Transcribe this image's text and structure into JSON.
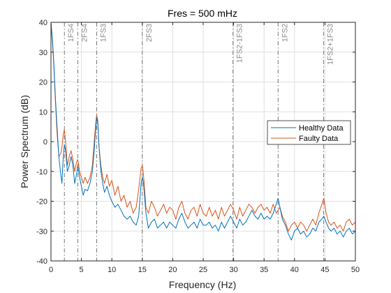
{
  "chart_data": {
    "type": "line",
    "title": "Fres = 500 mHz",
    "xlabel": "Frequency (Hz)",
    "ylabel": "Power Spectrum (dB)",
    "xlim": [
      0,
      50
    ],
    "ylim": [
      -40,
      40
    ],
    "x_ticks": [
      0,
      5,
      10,
      15,
      20,
      25,
      30,
      35,
      40,
      45,
      50
    ],
    "y_ticks": [
      -40,
      -30,
      -20,
      -10,
      0,
      10,
      20,
      30,
      40
    ],
    "grid": true,
    "legend_position": "right",
    "markers": [
      {
        "label": "1FS4",
        "x": 2.2
      },
      {
        "label": "2FS4",
        "x": 4.4
      },
      {
        "label": "1FS3",
        "x": 7.5
      },
      {
        "label": "2FS3",
        "x": 15.0
      },
      {
        "label": "1FS2-1FS3",
        "x": 29.9
      },
      {
        "label": "1FS2",
        "x": 37.3
      },
      {
        "label": "1FS2+1FS3",
        "x": 44.8
      }
    ],
    "series": [
      {
        "name": "Healthy Data",
        "color": "#0072BD",
        "points": [
          [
            0,
            40
          ],
          [
            0.25,
            34
          ],
          [
            0.5,
            25
          ],
          [
            0.75,
            14
          ],
          [
            1,
            5
          ],
          [
            1.3,
            -5
          ],
          [
            1.6,
            -11
          ],
          [
            1.8,
            -14
          ],
          [
            2.0,
            -6
          ],
          [
            2.2,
            -1
          ],
          [
            2.4,
            -3
          ],
          [
            2.7,
            -10
          ],
          [
            3.0,
            -8
          ],
          [
            3.3,
            -5
          ],
          [
            3.6,
            -8
          ],
          [
            3.9,
            -14
          ],
          [
            4.2,
            -11
          ],
          [
            4.4,
            -8
          ],
          [
            4.7,
            -12
          ],
          [
            5.0,
            -15
          ],
          [
            5.3,
            -18
          ],
          [
            5.6,
            -16
          ],
          [
            6.0,
            -16.5
          ],
          [
            6.4,
            -14
          ],
          [
            6.8,
            -10
          ],
          [
            7.1,
            -3
          ],
          [
            7.3,
            3
          ],
          [
            7.5,
            8
          ],
          [
            7.7,
            6
          ],
          [
            7.9,
            -2
          ],
          [
            8.2,
            -10
          ],
          [
            8.5,
            -14
          ],
          [
            8.8,
            -17
          ],
          [
            9.2,
            -15
          ],
          [
            9.6,
            -18
          ],
          [
            10.0,
            -20
          ],
          [
            10.5,
            -22
          ],
          [
            11.0,
            -21
          ],
          [
            11.5,
            -23
          ],
          [
            12.0,
            -25
          ],
          [
            12.5,
            -26
          ],
          [
            13.0,
            -25
          ],
          [
            13.5,
            -27
          ],
          [
            14.0,
            -28
          ],
          [
            14.4,
            -25
          ],
          [
            14.8,
            -14
          ],
          [
            15.0,
            -12
          ],
          [
            15.2,
            -14
          ],
          [
            15.6,
            -24
          ],
          [
            16.0,
            -29
          ],
          [
            16.5,
            -27
          ],
          [
            17.0,
            -26
          ],
          [
            17.5,
            -29
          ],
          [
            18.0,
            -28
          ],
          [
            18.5,
            -27
          ],
          [
            19.0,
            -29
          ],
          [
            19.5,
            -27
          ],
          [
            20.0,
            -28
          ],
          [
            20.5,
            -29
          ],
          [
            21.0,
            -26
          ],
          [
            21.5,
            -24
          ],
          [
            22.0,
            -27
          ],
          [
            22.5,
            -29
          ],
          [
            23.0,
            -28
          ],
          [
            23.5,
            -27
          ],
          [
            24.0,
            -29
          ],
          [
            24.5,
            -26
          ],
          [
            25.0,
            -28
          ],
          [
            25.5,
            -28
          ],
          [
            26.0,
            -27
          ],
          [
            26.5,
            -29
          ],
          [
            27.0,
            -28
          ],
          [
            27.5,
            -30
          ],
          [
            28.0,
            -27
          ],
          [
            28.5,
            -29
          ],
          [
            29.0,
            -27
          ],
          [
            29.5,
            -25
          ],
          [
            30.0,
            -27
          ],
          [
            30.5,
            -29
          ],
          [
            31.0,
            -26
          ],
          [
            31.5,
            -28
          ],
          [
            32.0,
            -27
          ],
          [
            32.5,
            -25
          ],
          [
            33.0,
            -23
          ],
          [
            33.5,
            -25
          ],
          [
            34.0,
            -26
          ],
          [
            34.5,
            -24
          ],
          [
            35.0,
            -26
          ],
          [
            35.5,
            -25
          ],
          [
            36.0,
            -26
          ],
          [
            36.5,
            -24
          ],
          [
            37.0,
            -21
          ],
          [
            37.3,
            -19
          ],
          [
            37.6,
            -22
          ],
          [
            38.0,
            -26
          ],
          [
            38.5,
            -28
          ],
          [
            39.0,
            -31
          ],
          [
            39.5,
            -33
          ],
          [
            40.0,
            -30
          ],
          [
            40.5,
            -29
          ],
          [
            41.0,
            -31
          ],
          [
            41.5,
            -30
          ],
          [
            42.0,
            -32
          ],
          [
            42.5,
            -31
          ],
          [
            43.0,
            -29
          ],
          [
            43.5,
            -30
          ],
          [
            44.0,
            -27
          ],
          [
            44.5,
            -26
          ],
          [
            44.8,
            -25
          ],
          [
            45.2,
            -27
          ],
          [
            45.6,
            -29
          ],
          [
            46.0,
            -30
          ],
          [
            46.5,
            -29
          ],
          [
            47.0,
            -31
          ],
          [
            47.5,
            -30
          ],
          [
            48.0,
            -32
          ],
          [
            48.5,
            -30
          ],
          [
            49.0,
            -29
          ],
          [
            49.5,
            -31
          ],
          [
            50.0,
            -30
          ]
        ]
      },
      {
        "name": "Faulty Data",
        "color": "#D95319",
        "points": [
          [
            0,
            40
          ],
          [
            0.25,
            33
          ],
          [
            0.5,
            24
          ],
          [
            0.75,
            13
          ],
          [
            1,
            3
          ],
          [
            1.3,
            -5
          ],
          [
            1.6,
            -4
          ],
          [
            1.8,
            -2
          ],
          [
            2.0,
            2
          ],
          [
            2.2,
            4
          ],
          [
            2.4,
            0
          ],
          [
            2.7,
            -8
          ],
          [
            3.0,
            -5
          ],
          [
            3.3,
            -3
          ],
          [
            3.6,
            -6
          ],
          [
            3.9,
            -10
          ],
          [
            4.2,
            -7
          ],
          [
            4.4,
            -6
          ],
          [
            4.7,
            -10
          ],
          [
            5.0,
            -12
          ],
          [
            5.3,
            -14
          ],
          [
            5.6,
            -12
          ],
          [
            6.0,
            -14
          ],
          [
            6.4,
            -12
          ],
          [
            6.8,
            -8
          ],
          [
            7.1,
            0
          ],
          [
            7.3,
            5
          ],
          [
            7.5,
            9
          ],
          [
            7.7,
            7
          ],
          [
            7.9,
            -2
          ],
          [
            8.2,
            -8
          ],
          [
            8.5,
            -12
          ],
          [
            8.8,
            -14
          ],
          [
            9.2,
            -11
          ],
          [
            9.6,
            -15
          ],
          [
            10.0,
            -13
          ],
          [
            10.5,
            -18
          ],
          [
            11.0,
            -15
          ],
          [
            11.5,
            -20
          ],
          [
            12.0,
            -18
          ],
          [
            12.5,
            -22
          ],
          [
            13.0,
            -20
          ],
          [
            13.5,
            -24
          ],
          [
            14.0,
            -22
          ],
          [
            14.4,
            -16
          ],
          [
            14.8,
            -9
          ],
          [
            15.0,
            -8
          ],
          [
            15.2,
            -11
          ],
          [
            15.6,
            -22
          ],
          [
            16.0,
            -24
          ],
          [
            16.5,
            -20
          ],
          [
            17.0,
            -22
          ],
          [
            17.5,
            -25
          ],
          [
            18.0,
            -23
          ],
          [
            18.5,
            -21
          ],
          [
            19.0,
            -24
          ],
          [
            19.5,
            -22
          ],
          [
            20.0,
            -23
          ],
          [
            20.5,
            -26
          ],
          [
            21.0,
            -22
          ],
          [
            21.5,
            -20
          ],
          [
            22.0,
            -24
          ],
          [
            22.5,
            -26
          ],
          [
            23.0,
            -23
          ],
          [
            23.5,
            -22
          ],
          [
            24.0,
            -25
          ],
          [
            24.5,
            -21
          ],
          [
            25.0,
            -24
          ],
          [
            25.5,
            -25
          ],
          [
            26.0,
            -22
          ],
          [
            26.5,
            -25
          ],
          [
            27.0,
            -23
          ],
          [
            27.5,
            -26
          ],
          [
            28.0,
            -22
          ],
          [
            28.5,
            -25
          ],
          [
            29.0,
            -23
          ],
          [
            29.5,
            -21
          ],
          [
            30.0,
            -23
          ],
          [
            30.5,
            -26
          ],
          [
            31.0,
            -22
          ],
          [
            31.5,
            -25
          ],
          [
            32.0,
            -23
          ],
          [
            32.5,
            -21
          ],
          [
            33.0,
            -22
          ],
          [
            33.5,
            -24
          ],
          [
            34.0,
            -22
          ],
          [
            34.5,
            -21
          ],
          [
            35.0,
            -23
          ],
          [
            35.5,
            -22
          ],
          [
            36.0,
            -24
          ],
          [
            36.5,
            -21
          ],
          [
            37.0,
            -24
          ],
          [
            37.3,
            -23
          ],
          [
            37.6,
            -22
          ],
          [
            38.0,
            -25
          ],
          [
            38.5,
            -27
          ],
          [
            39.0,
            -30
          ],
          [
            39.5,
            -28
          ],
          [
            40.0,
            -27
          ],
          [
            40.5,
            -29
          ],
          [
            41.0,
            -27
          ],
          [
            41.5,
            -28
          ],
          [
            42.0,
            -30
          ],
          [
            42.5,
            -28
          ],
          [
            43.0,
            -26
          ],
          [
            43.5,
            -28
          ],
          [
            44.0,
            -24
          ],
          [
            44.5,
            -21
          ],
          [
            44.8,
            -19
          ],
          [
            45.2,
            -24
          ],
          [
            45.6,
            -27
          ],
          [
            46.0,
            -28
          ],
          [
            46.5,
            -27
          ],
          [
            47.0,
            -29
          ],
          [
            47.5,
            -28
          ],
          [
            48.0,
            -30
          ],
          [
            48.5,
            -27
          ],
          [
            49.0,
            -26
          ],
          [
            49.5,
            -28
          ],
          [
            50.0,
            -27
          ]
        ]
      }
    ]
  }
}
